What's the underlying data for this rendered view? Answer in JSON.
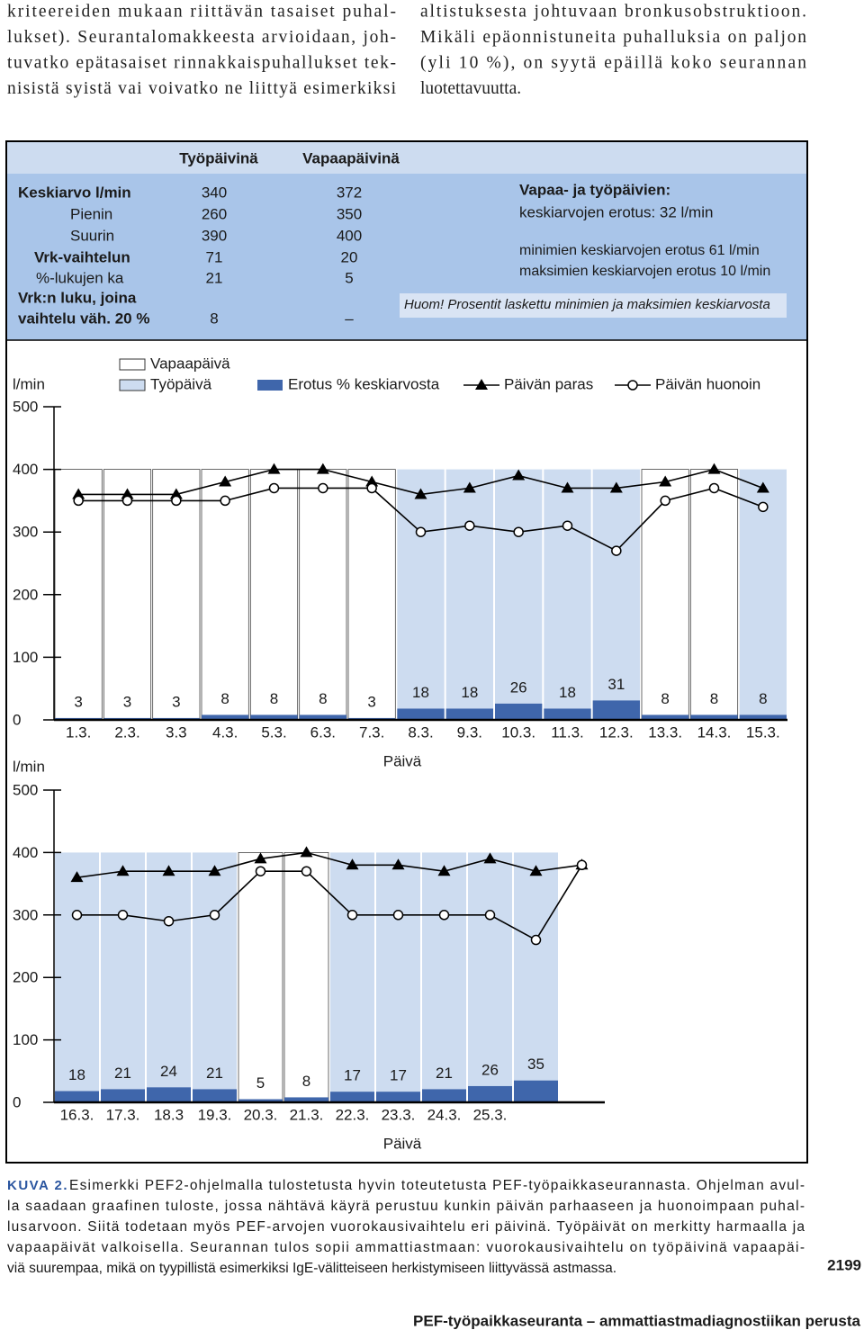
{
  "body_text": {
    "left": [
      "kriteereiden mukaan riittävän tasaiset puhal-",
      "lukset). Seurantalomakkeesta arvioidaan, joh-",
      "tuvatko epätasaiset rinnakkaispuhallukset tek-",
      "nisistä syistä vai voivatko ne liittyä esimerkiksi"
    ],
    "right": [
      "altistuksesta johtuvaan bronkusobstruktioon.",
      "Mikäli epäonnistuneita puhalluksia on paljon",
      "(yli 10 %), on syytä epäillä koko seurannan",
      "luotettavuutta."
    ]
  },
  "summary": {
    "headers": [
      "Työpäivinä",
      "Vapaapäivinä"
    ],
    "rows": [
      {
        "label": [
          "Keskiarvo l/min"
        ],
        "values": [
          "340",
          "372"
        ]
      },
      {
        "label": [
          "Pienin"
        ],
        "values": [
          "260",
          "350"
        ]
      },
      {
        "label": [
          "Suurin"
        ],
        "values": [
          "390",
          "400"
        ]
      },
      {
        "label": [
          "Vrk-vaihtelun"
        ],
        "values": [
          "71",
          "20"
        ]
      },
      {
        "label": [
          "%-lukujen ka"
        ],
        "values": [
          "21",
          "5"
        ]
      },
      {
        "label": [
          "Vrk:n luku, joina",
          "vaihtelu väh. 20 %"
        ],
        "values": [
          "8",
          "–"
        ]
      }
    ],
    "comparison": {
      "title": "Vapaa- ja työpäivien:",
      "lines": [
        "keskiarvojen erotus: 32 l/min",
        "minimien keskiarvojen erotus 61 l/min",
        "maksimien keskiarvojen erotus 10 l/min"
      ]
    },
    "note": "Huom! Prosentit laskettu minimien ja maksimien keskiarvosta"
  },
  "chart_data": [
    {
      "type": "combo",
      "x_label": "Päivä",
      "y_label": "l/min",
      "legend": "top",
      "categories": [
        "1.3.",
        "2.3.",
        "3.3",
        "4.3.",
        "5.3.",
        "6.3.",
        "7.3.",
        "8.3.",
        "9.3.",
        "10.3.",
        "11.3.",
        "12.3.",
        "13.3.",
        "14.3.",
        "15.3."
      ],
      "ylim": [
        0,
        500
      ],
      "yticks": [
        0,
        100,
        200,
        300,
        400,
        500
      ],
      "series": [
        {
          "name": "Vapaapäivä",
          "type": "column",
          "color": "#ffffff",
          "values": [
            400,
            400,
            400,
            400,
            400,
            400,
            400,
            null,
            null,
            null,
            null,
            null,
            400,
            400,
            null
          ]
        },
        {
          "name": "Työpäivä",
          "type": "column",
          "color": "#cddcf0",
          "values": [
            null,
            null,
            null,
            null,
            null,
            null,
            null,
            400,
            400,
            400,
            400,
            400,
            null,
            null,
            400
          ]
        },
        {
          "name": "Erotus % keskiarvosta",
          "type": "bar",
          "color": "#3f66ab",
          "values": [
            3,
            3,
            3,
            8,
            8,
            8,
            3,
            18,
            18,
            26,
            18,
            31,
            8,
            8,
            8
          ]
        },
        {
          "name": "Päivän paras",
          "type": "line",
          "marker": "triangle",
          "color": "#000000",
          "values": [
            360,
            360,
            360,
            380,
            400,
            400,
            380,
            360,
            370,
            390,
            370,
            370,
            380,
            400,
            370
          ]
        },
        {
          "name": "Päivän huonoin",
          "type": "line",
          "marker": "circle",
          "color": "#000000",
          "values": [
            350,
            350,
            350,
            350,
            370,
            370,
            370,
            300,
            310,
            300,
            310,
            270,
            350,
            370,
            340
          ]
        }
      ]
    },
    {
      "type": "combo",
      "x_label": "Päivä",
      "y_label": "l/min",
      "categories": [
        "16.3.",
        "17.3.",
        "18.3",
        "19.3.",
        "20.3.",
        "21.3.",
        "22.3.",
        "23.3.",
        "24.3.",
        "25.3.",
        null,
        null
      ],
      "ylim": [
        0,
        500
      ],
      "yticks": [
        0,
        100,
        200,
        300,
        400,
        500
      ],
      "series": [
        {
          "type": "column",
          "color": "#ffffff",
          "values": [
            null,
            null,
            null,
            null,
            400,
            400,
            null,
            null,
            null,
            null,
            null,
            null
          ]
        },
        {
          "type": "column",
          "color": "#cddcf0",
          "values": [
            400,
            400,
            400,
            400,
            null,
            null,
            400,
            400,
            400,
            400,
            400,
            null
          ]
        },
        {
          "type": "bar",
          "color": "#3f66ab",
          "values": [
            18,
            21,
            24,
            21,
            5,
            8,
            17,
            17,
            21,
            26,
            35,
            null
          ]
        },
        {
          "type": "line",
          "marker": "triangle",
          "color": "#000000",
          "values": [
            360,
            370,
            370,
            370,
            390,
            400,
            380,
            380,
            370,
            390,
            370,
            380
          ]
        },
        {
          "type": "line",
          "marker": "circle",
          "color": "#000000",
          "values": [
            300,
            300,
            290,
            300,
            370,
            370,
            300,
            300,
            300,
            300,
            260,
            380
          ]
        }
      ]
    }
  ],
  "caption": {
    "label": "KUVA 2.",
    "lines": [
      "Esimerkki PEF2-ohjelmalla tulostetusta hyvin toteutetusta PEF-työpaikkaseurannasta. Ohjelman avul-",
      "la saadaan graafinen tuloste, jossa nähtävä käyrä perustuu kunkin päivän parhaaseen ja huonoimpaan puhal-",
      "lusarvoon. Siitä todetaan myös PEF-arvojen vuorokausivaihtelu eri päivinä. Työpäivät on merkitty harmaalla ja",
      "vapaapäivät valkoisella. Seurannan tulos sopii ammattiastmaan: vuorokausivaihtelu on työpäivinä vapaapäi-",
      "viä suurempaa, mikä on tyypillistä esimerkiksi IgE-välitteiseen herkistymiseen liittyvässä astmassa."
    ]
  },
  "page_number": "2199",
  "footer": "PEF-työpaikkaseuranta – ammattiastmadiagnostiikan perusta"
}
